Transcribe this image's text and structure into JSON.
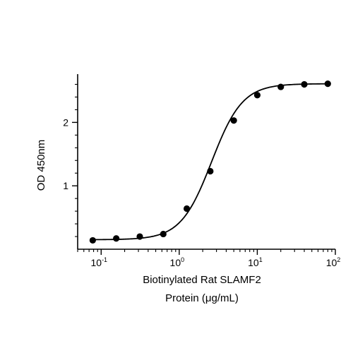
{
  "chart_data": {
    "type": "scatter",
    "xscale": "log",
    "xlabel_lines": [
      "Biotinylated Rat SLAMF2",
      "Protein (μg/mL)"
    ],
    "ylabel": "OD 450nm",
    "xlim": [
      0.05,
      100
    ],
    "ylim": [
      0,
      2.65
    ],
    "x_ticks": [
      {
        "value": 0.1,
        "base": "10",
        "exp": "-1"
      },
      {
        "value": 1,
        "base": "10",
        "exp": "0"
      },
      {
        "value": 10,
        "base": "10",
        "exp": "1"
      },
      {
        "value": 100,
        "base": "10",
        "exp": "2"
      }
    ],
    "y_ticks": [
      {
        "value": 1,
        "label": "1"
      },
      {
        "value": 2,
        "label": "2"
      }
    ],
    "grid": false,
    "series": [
      {
        "x": [
          0.078,
          0.156,
          0.3125,
          0.625,
          1.25,
          2.5,
          5,
          10,
          20,
          40,
          80
        ],
        "y": [
          0.14,
          0.17,
          0.2,
          0.24,
          0.64,
          1.23,
          2.03,
          2.43,
          2.56,
          2.6,
          2.61
        ]
      }
    ],
    "fit_curve": {
      "bottom": 0.15,
      "top": 2.61,
      "ec50": 2.6,
      "hill": 2.2
    }
  }
}
